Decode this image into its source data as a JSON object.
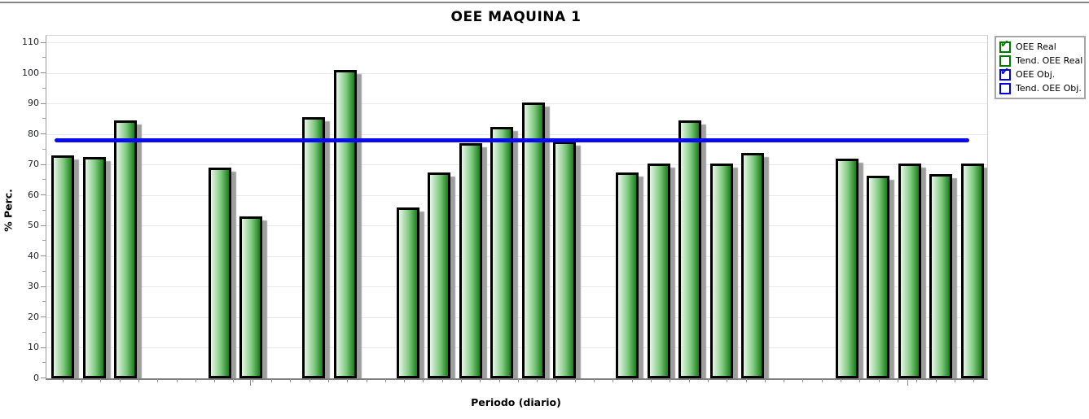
{
  "title": "OEE MAQUINA 1",
  "axes": {
    "y_label": "% Perc.",
    "x_label": "Periodo (diario)",
    "y_ticks": [
      0,
      10,
      20,
      30,
      40,
      50,
      60,
      70,
      80,
      90,
      100,
      110
    ]
  },
  "legend": {
    "items": [
      {
        "label": "OEE Real",
        "color": "#007800",
        "checked": true
      },
      {
        "label": "Tend. OEE Real",
        "color": "#007800",
        "checked": false
      },
      {
        "label": "OEE Obj.",
        "color": "#0000dd",
        "checked": true
      },
      {
        "label": "Tend. OEE Obj.",
        "color": "#0000dd",
        "checked": false
      }
    ]
  },
  "colors": {
    "bar_gradient_light": "#e8f5e8",
    "bar_gradient_mid": "#7ec97e",
    "bar_gradient_dark": "#1a7f1a",
    "bar_border": "#000000",
    "bar_shadow": "#9e9e9e",
    "objective_line": "#0a0aee",
    "grid": "#e9e9e9",
    "axis": "#8c8c8c",
    "minor_tick": "#a8a8a8"
  },
  "chart_data": {
    "type": "bar",
    "title": "OEE MAQUINA 1",
    "xlabel": "Periodo (diario)",
    "ylabel": "% Perc.",
    "ylim": [
      0,
      110
    ],
    "grid": true,
    "legend_position": "top-right",
    "x_tick_labels": [],
    "x_slot_count": 30,
    "series": [
      {
        "name": "OEE Real",
        "type": "bar",
        "points": [
          {
            "slot": 0,
            "value": 73
          },
          {
            "slot": 1,
            "value": 72.5
          },
          {
            "slot": 2,
            "value": 84.5
          },
          {
            "slot": 5,
            "value": 69
          },
          {
            "slot": 6,
            "value": 53
          },
          {
            "slot": 8,
            "value": 85.5
          },
          {
            "slot": 9,
            "value": 101
          },
          {
            "slot": 11,
            "value": 56
          },
          {
            "slot": 12,
            "value": 67.5
          },
          {
            "slot": 13,
            "value": 77
          },
          {
            "slot": 14,
            "value": 82.5
          },
          {
            "slot": 15,
            "value": 90.5
          },
          {
            "slot": 16,
            "value": 77.5
          },
          {
            "slot": 18,
            "value": 67.5
          },
          {
            "slot": 19,
            "value": 70.5
          },
          {
            "slot": 20,
            "value": 84.5
          },
          {
            "slot": 21,
            "value": 70.5
          },
          {
            "slot": 22,
            "value": 74
          },
          {
            "slot": 25,
            "value": 72
          },
          {
            "slot": 26,
            "value": 66.5
          },
          {
            "slot": 27,
            "value": 70.5
          },
          {
            "slot": 28,
            "value": 67
          },
          {
            "slot": 29,
            "value": 70.5
          }
        ]
      },
      {
        "name": "OEE Obj.",
        "type": "line",
        "value": 78
      }
    ]
  }
}
